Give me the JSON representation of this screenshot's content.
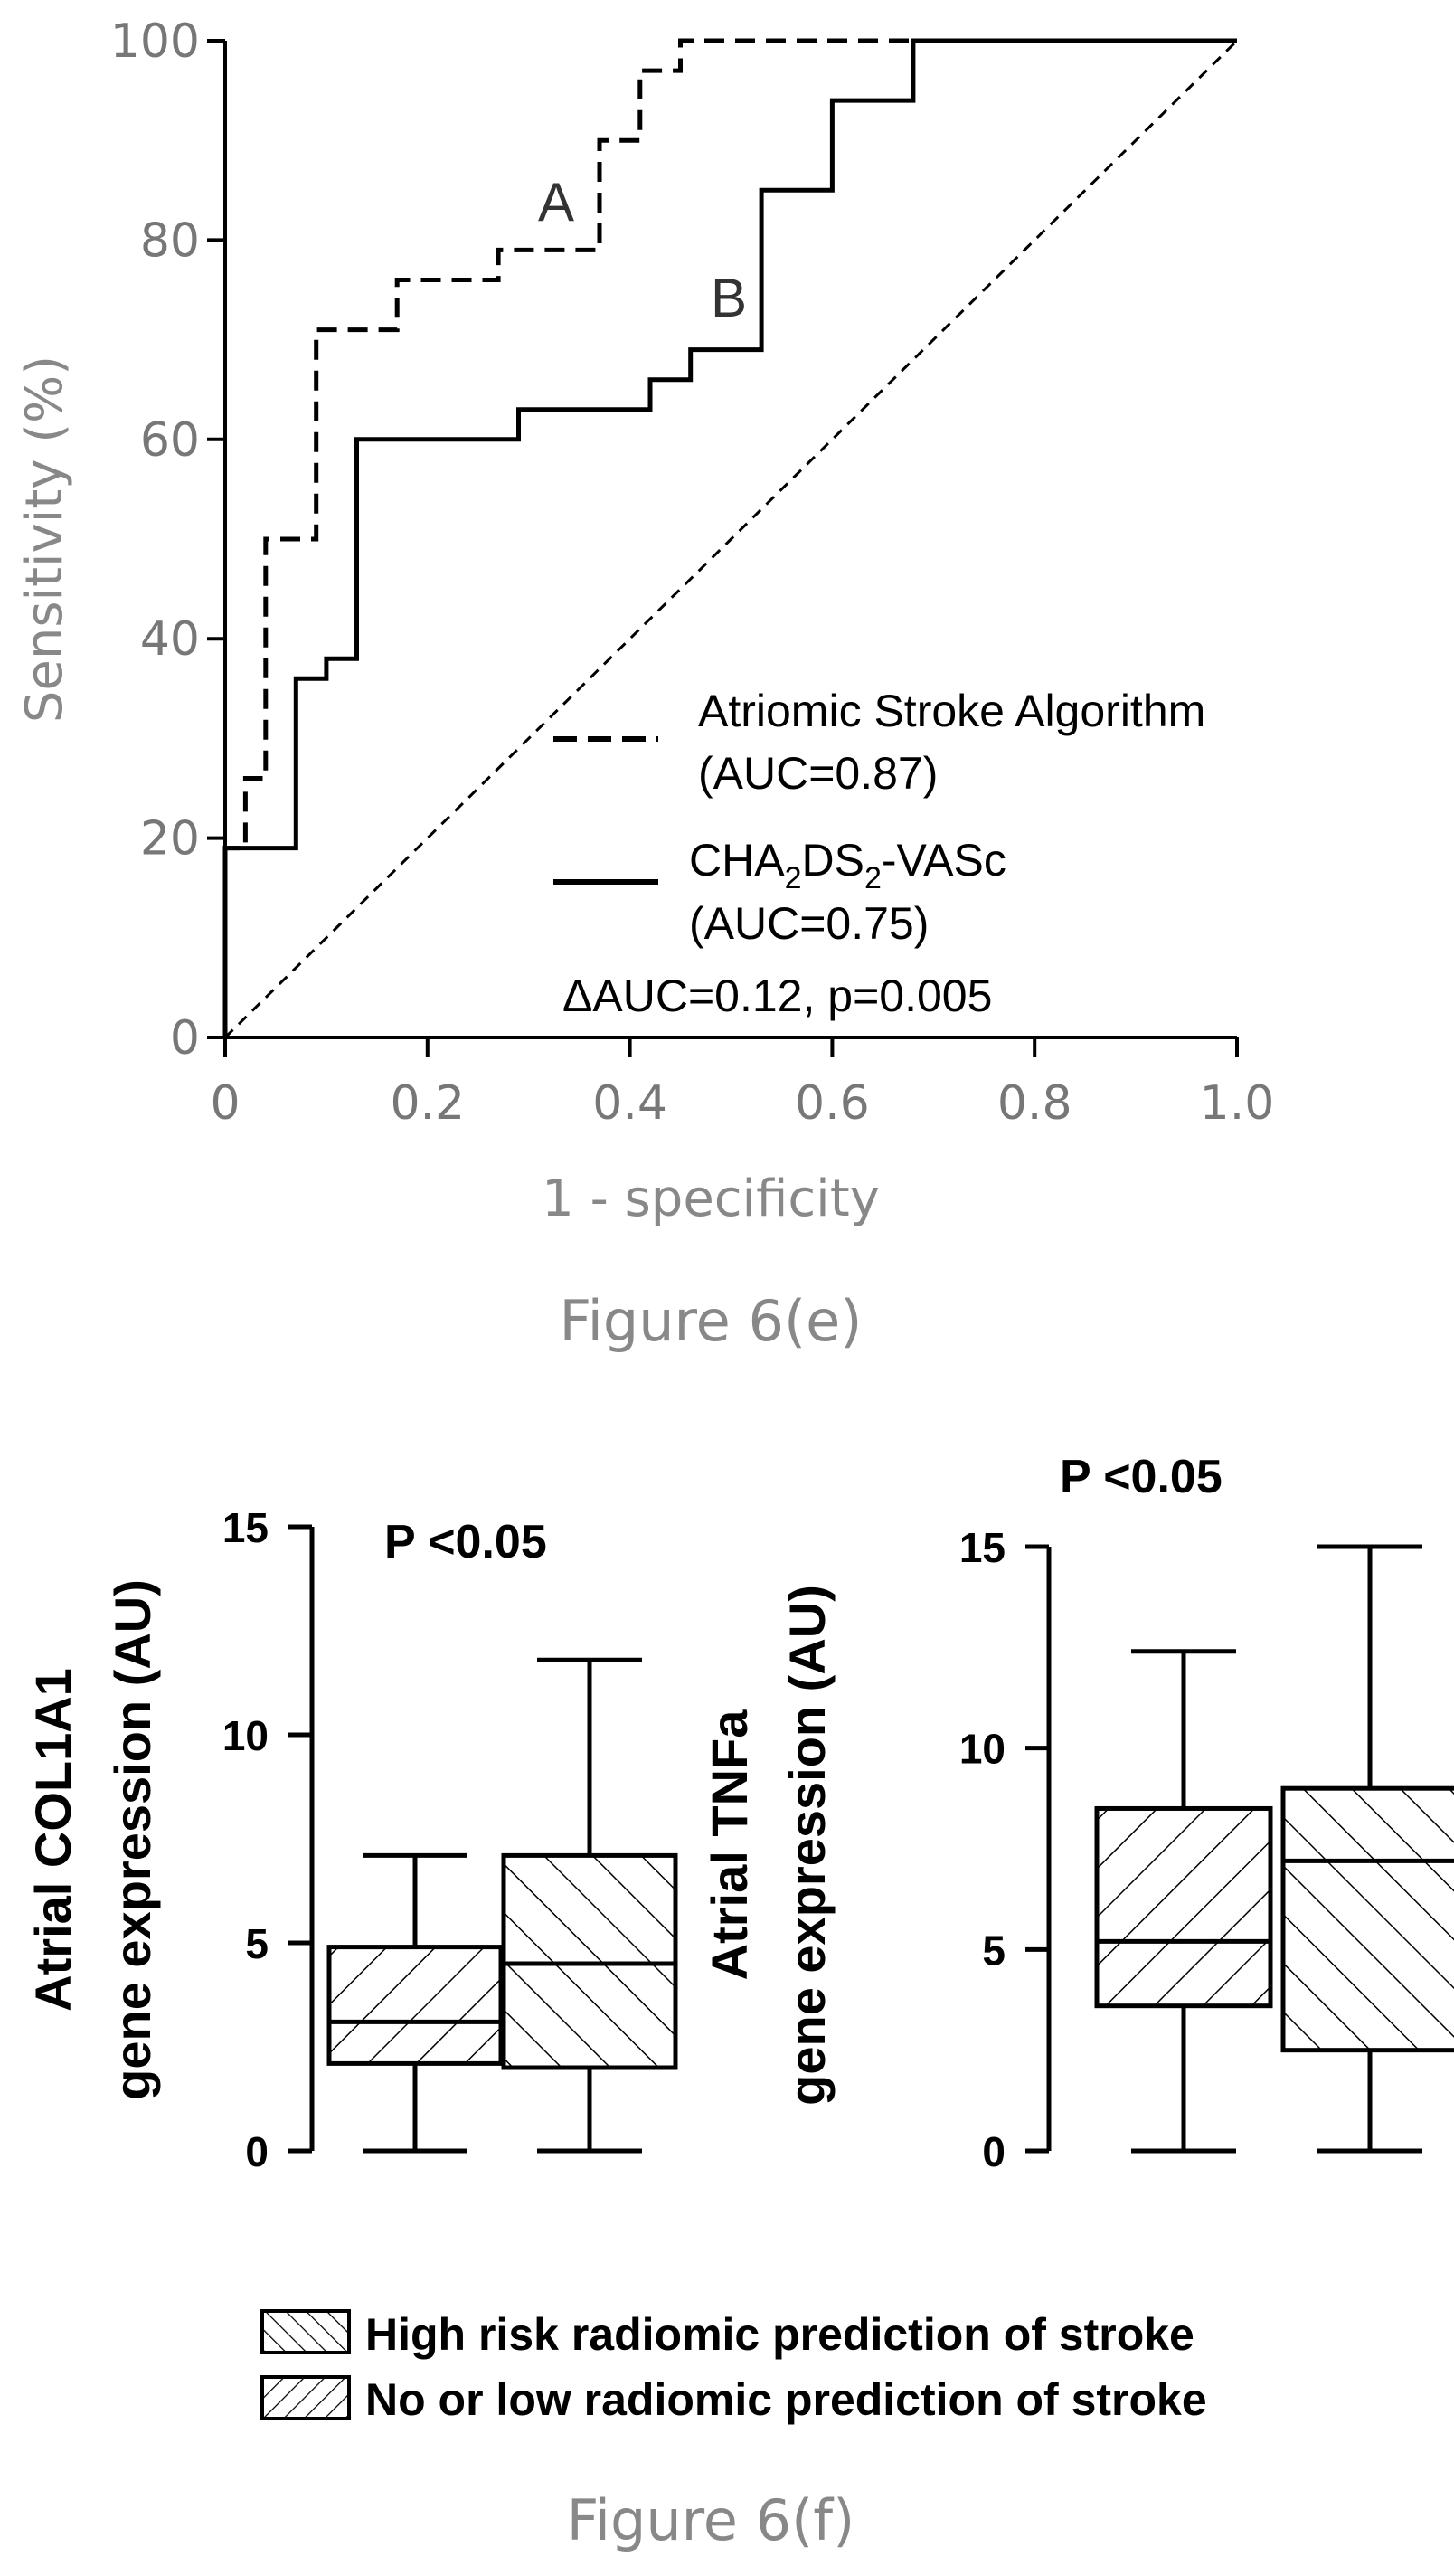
{
  "chart_data": [
    {
      "type": "line",
      "xlabel": "1 - specificity",
      "ylabel": "Sensitivity (%)",
      "xlim": [
        0,
        1.0
      ],
      "ylim": [
        0,
        100
      ],
      "x_ticks": [
        "0",
        "0.2",
        "0.4",
        "0.6",
        "0.8",
        "1.0"
      ],
      "y_ticks": [
        "0",
        "20",
        "40",
        "60",
        "80",
        "100"
      ],
      "x_tick_values": [
        0,
        0.2,
        0.4,
        0.6,
        0.8,
        1.0
      ],
      "y_tick_values": [
        0,
        20,
        40,
        60,
        80,
        100
      ],
      "series": [
        {
          "name": "A",
          "style": "dashed",
          "points": [
            [
              0,
              0
            ],
            [
              0,
              19
            ],
            [
              0.02,
              19
            ],
            [
              0.02,
              26
            ],
            [
              0.04,
              26
            ],
            [
              0.04,
              46
            ],
            [
              0.04,
              50
            ],
            [
              0.09,
              50
            ],
            [
              0.09,
              71
            ],
            [
              0.17,
              71
            ],
            [
              0.17,
              76
            ],
            [
              0.27,
              76
            ],
            [
              0.27,
              79
            ],
            [
              0.37,
              79
            ],
            [
              0.37,
              90
            ],
            [
              0.41,
              90
            ],
            [
              0.41,
              97
            ],
            [
              0.45,
              97
            ],
            [
              0.45,
              100
            ],
            [
              0.66,
              100
            ],
            [
              1.0,
              100
            ]
          ]
        },
        {
          "name": "B",
          "style": "solid",
          "points": [
            [
              0,
              0
            ],
            [
              0,
              19
            ],
            [
              0.07,
              19
            ],
            [
              0.07,
              36
            ],
            [
              0.1,
              36
            ],
            [
              0.1,
              38
            ],
            [
              0.13,
              38
            ],
            [
              0.13,
              60
            ],
            [
              0.29,
              60
            ],
            [
              0.29,
              63
            ],
            [
              0.42,
              63
            ],
            [
              0.42,
              66
            ],
            [
              0.46,
              66
            ],
            [
              0.46,
              69
            ],
            [
              0.53,
              69
            ],
            [
              0.53,
              85
            ],
            [
              0.6,
              85
            ],
            [
              0.6,
              94
            ],
            [
              0.68,
              94
            ],
            [
              0.68,
              100
            ],
            [
              1.0,
              100
            ]
          ]
        },
        {
          "name": "reference",
          "style": "dashed-thin",
          "points": [
            [
              0,
              0
            ],
            [
              1.0,
              100
            ]
          ]
        }
      ],
      "curve_labels": [
        "A",
        "B"
      ],
      "legend": [
        {
          "style": "dashed",
          "line1": "Atriomic Stroke Algorithm",
          "line2": "(AUC=0.87)"
        },
        {
          "style": "solid",
          "line1_main": "CHA",
          "line1_sub1": "2",
          "line1_mid": "DS",
          "line1_sub2": "2",
          "line1_end": "-VASc",
          "line2": "(AUC=0.75)"
        }
      ],
      "annotation": "ΔAUC=0.12, p=0.005",
      "caption": "Figure 6(e)"
    },
    {
      "type": "box",
      "ylabel_line1": "Atrial COL1A1",
      "ylabel_line2": "gene expression (AU)",
      "ylim": [
        0,
        15
      ],
      "y_ticks": [
        "0",
        "5",
        "10",
        "15"
      ],
      "y_tick_values": [
        0,
        5,
        10,
        15
      ],
      "annotation": "P <0.05",
      "boxes": [
        {
          "group": "No or low radiomic prediction of stroke",
          "min": 0,
          "q1": 2.1,
          "median": 3.1,
          "q3": 4.9,
          "max": 7.1
        },
        {
          "group": "High risk radiomic prediction of stroke",
          "min": 0,
          "q1": 2.0,
          "median": 4.5,
          "q3": 7.1,
          "max": 11.8
        }
      ]
    },
    {
      "type": "box",
      "ylabel_line1": "Atrial TNFa",
      "ylabel_line2": "gene expression (AU)",
      "ylim": [
        0,
        15
      ],
      "y_ticks": [
        "0",
        "5",
        "10",
        "15"
      ],
      "y_tick_values": [
        0,
        5,
        10,
        15
      ],
      "annotation": "P <0.05",
      "boxes": [
        {
          "group": "No or low radiomic prediction of stroke",
          "min": 0,
          "q1": 3.6,
          "median": 5.2,
          "q3": 8.5,
          "max": 12.4
        },
        {
          "group": "High risk radiomic prediction of stroke",
          "min": 0,
          "q1": 2.5,
          "median": 7.2,
          "q3": 9.0,
          "max": 15.0
        }
      ]
    }
  ],
  "legend_f": [
    {
      "pattern": "hatch-back",
      "label": "High risk radiomic prediction of stroke"
    },
    {
      "pattern": "hatch-fwd",
      "label": "No or low radiomic prediction of stroke"
    }
  ],
  "caption_f": "Figure 6(f)"
}
